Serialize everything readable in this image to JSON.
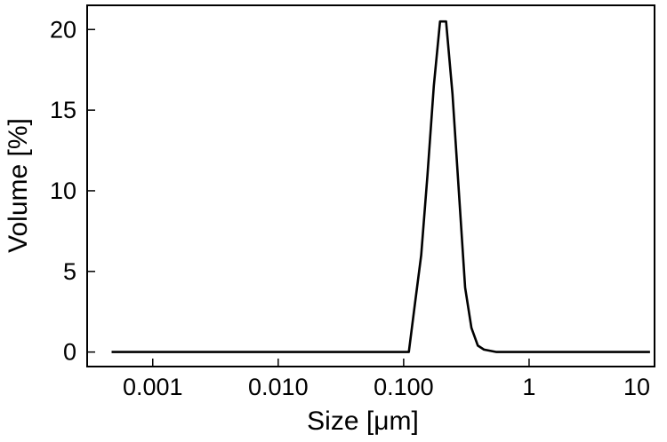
{
  "chart_data": {
    "type": "line",
    "xlabel": "Size [μm]",
    "ylabel": "Volume [%]",
    "xscale": "log",
    "xlim": [
      0.0003,
      10
    ],
    "ylim": [
      -0.9,
      21.5
    ],
    "grid": false,
    "legend": "none",
    "line_color": "#000000",
    "xticks": [
      {
        "value": 0.001,
        "label": "0.001"
      },
      {
        "value": 0.01,
        "label": "0.010"
      },
      {
        "value": 0.1,
        "label": "0.100"
      },
      {
        "value": 1,
        "label": "1"
      },
      {
        "value": 10,
        "label": "10"
      }
    ],
    "yticks": [
      {
        "value": 0,
        "label": "0"
      },
      {
        "value": 5,
        "label": "5"
      },
      {
        "value": 10,
        "label": "10"
      },
      {
        "value": 15,
        "label": "15"
      },
      {
        "value": 20,
        "label": "20"
      }
    ],
    "series": [
      {
        "x": [
          0.00047,
          0.11,
          0.123,
          0.138,
          0.155,
          0.174,
          0.195,
          0.218,
          0.245,
          0.275,
          0.309,
          0.347,
          0.39,
          0.437,
          0.55,
          9.2
        ],
        "y": [
          0,
          0,
          3.0,
          6.0,
          11.0,
          16.5,
          20.5,
          20.5,
          16.0,
          10.0,
          4.0,
          1.5,
          0.4,
          0.15,
          0,
          0
        ]
      }
    ]
  }
}
